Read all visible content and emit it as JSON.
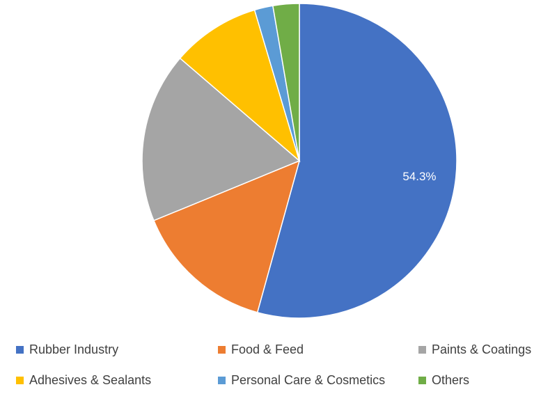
{
  "chart_data": {
    "type": "pie",
    "title": "",
    "slices": [
      {
        "label": "Rubber Industry",
        "value": 54.3,
        "color": "#4472C4",
        "data_label": "54.3%"
      },
      {
        "label": "Food & Feed",
        "value": 14.5,
        "color": "#ED7D31",
        "data_label": ""
      },
      {
        "label": "Paints & Coatings",
        "value": 17.5,
        "color": "#A5A5A5",
        "data_label": ""
      },
      {
        "label": "Adhesives & Sealants",
        "value": 9.1,
        "color": "#FFC000",
        "data_label": ""
      },
      {
        "label": "Personal Care & Cosmetics",
        "value": 1.9,
        "color": "#5B9BD5",
        "data_label": ""
      },
      {
        "label": "Others",
        "value": 2.7,
        "color": "#70AD47",
        "data_label": ""
      }
    ],
    "start_angle_deg": 0,
    "direction": "clockwise",
    "legend_position": "bottom"
  }
}
